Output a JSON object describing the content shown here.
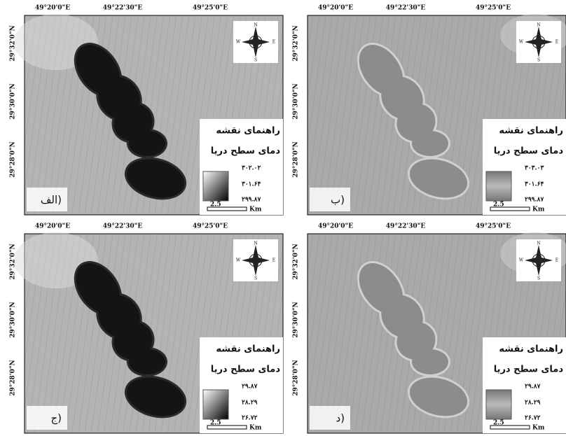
{
  "lon_labels": [
    "49°20'0\"E",
    "49°22'30\"E",
    "49°25'0\"E"
  ],
  "lat_labels": [
    "29°32'0\"N",
    "29°30'0\"N",
    "29°28'0\"N"
  ],
  "legend_title": "راهنمای نقشه",
  "legend_subtitle": "دمای سطح دریا",
  "scale": "2.5",
  "unit": "Km",
  "compass": {
    "n": "N",
    "s": "S",
    "e": "E",
    "w": "W"
  },
  "panels": [
    {
      "label": "الف)",
      "values": [
        "۳۰۲.۰۲",
        "۳۰۱.۶۴",
        "۲۹۹.۸۷"
      ],
      "water_color": "#b4b4b4",
      "lake_color": "#141414",
      "lake_edge": "#2a2a2a"
    },
    {
      "label": "ب)",
      "values": [
        "۳۰۳.۰۳",
        "۳۰۱.۶۴",
        "۲۹۹.۸۷"
      ],
      "water_color": "#a9a9a9",
      "lake_color": "#8c8c8c",
      "lake_edge": "#d0d0d0"
    },
    {
      "label": "ج)",
      "values": [
        "۲۹.۸۷",
        "۲۸.۲۹",
        "۲۶.۷۲"
      ],
      "water_color": "#b4b4b4",
      "lake_color": "#141414",
      "lake_edge": "#2a2a2a"
    },
    {
      "label": "د)",
      "values": [
        "۲۹.۸۷",
        "۲۸.۲۹",
        "۲۶.۷۲"
      ],
      "water_color": "#a9a9a9",
      "lake_color": "#8c8c8c",
      "lake_edge": "#d0d0d0"
    }
  ]
}
